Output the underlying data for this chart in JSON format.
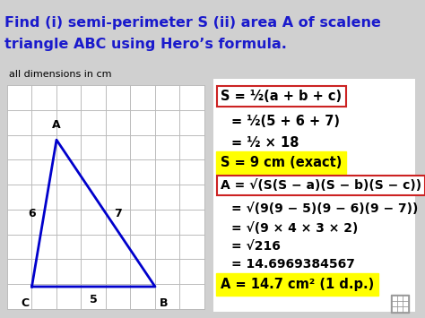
{
  "bg_color": "#d0d0d0",
  "right_panel_color": "#ffffff",
  "title_line1": "Find (i) semi-perimeter S (ii) area A of scalene",
  "title_line2": "triangle ABC using Hero’s formula.",
  "title_color": "#1a1acc",
  "title_fontsize": 11.5,
  "subtitle": "all dimensions in cm",
  "subtitle_fontsize": 8,
  "grid_color": "#bbbbbb",
  "triangle_color": "#0000cc",
  "triangle_C": [
    0,
    0
  ],
  "triangle_B": [
    5,
    0
  ],
  "triangle_A": [
    1,
    6
  ],
  "formulas": [
    {
      "text": "S = ½(a + b + c)",
      "fontsize": 10.5,
      "bold": true,
      "box": "red",
      "bg": "none",
      "color": "black"
    },
    {
      "text": "= ½(5 + 6 + 7)",
      "fontsize": 10.5,
      "bold": true,
      "box": "none",
      "bg": "none",
      "color": "black"
    },
    {
      "text": "= ½ × 18",
      "fontsize": 10.5,
      "bold": true,
      "box": "none",
      "bg": "none",
      "color": "black"
    },
    {
      "text": "S = 9 cm (exact)",
      "fontsize": 10.5,
      "bold": true,
      "box": "yellow",
      "bg": "#ffff00",
      "color": "black"
    },
    {
      "text": "A = √(S(S − a)(S − b)(S − c))",
      "fontsize": 10.0,
      "bold": true,
      "box": "red",
      "bg": "none",
      "color": "black"
    },
    {
      "text": "= √(9(9 − 5)(9 − 6)(9 − 7))",
      "fontsize": 10.0,
      "bold": true,
      "box": "none",
      "bg": "none",
      "color": "black"
    },
    {
      "text": "= √(9 × 4 × 3 × 2)",
      "fontsize": 10.0,
      "bold": true,
      "box": "none",
      "bg": "none",
      "color": "black"
    },
    {
      "text": "= √216",
      "fontsize": 10.0,
      "bold": true,
      "box": "none",
      "bg": "none",
      "color": "black"
    },
    {
      "text": "= 14.6969384567",
      "fontsize": 10.0,
      "bold": true,
      "box": "none",
      "bg": "none",
      "color": "black"
    },
    {
      "text": "A = 14.7 cm² (1 d.p.)",
      "fontsize": 10.5,
      "bold": true,
      "box": "yellow",
      "bg": "#ffff00",
      "color": "black"
    }
  ],
  "yellow_color": "#ffff00",
  "red_edge_color": "#cc2222",
  "icon_grid_color": "#999999"
}
